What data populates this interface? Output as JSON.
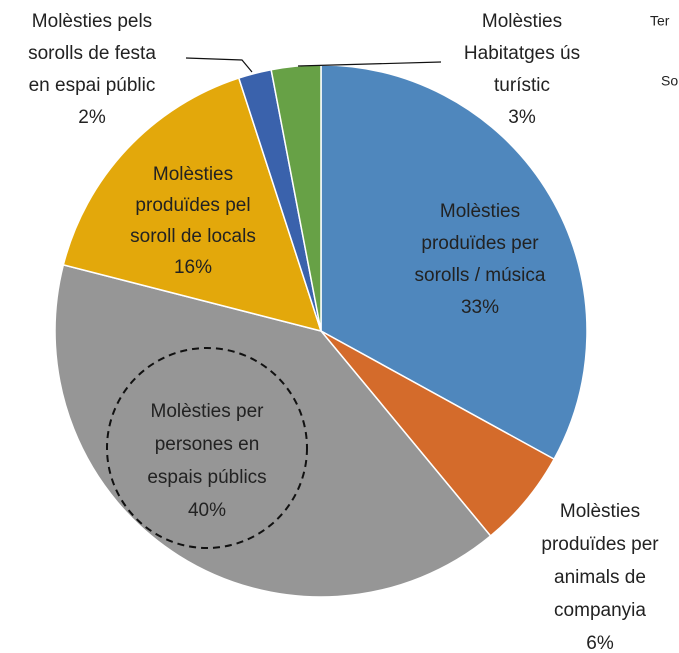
{
  "chart_data": {
    "type": "pie",
    "categories": [
      [
        "Molèsties",
        "produïdes per",
        "sorolls / música"
      ],
      [
        "Molèsties",
        "produïdes per",
        "animals de",
        "companyia"
      ],
      [
        "Molèsties per",
        "persones en",
        "espais públics"
      ],
      [
        "Molèsties",
        "produïdes pel",
        "soroll de locals"
      ],
      [
        "Molèsties pels",
        "sorolls de festa",
        "en espai públic"
      ],
      [
        "Molèsties",
        "Habitatges ús",
        "turístic"
      ]
    ],
    "values": [
      33,
      6,
      40,
      16,
      2,
      3
    ],
    "value_labels": [
      "33%",
      "6%",
      "40%",
      "16%",
      "2%",
      "3%"
    ],
    "colors": [
      "#4f87bd",
      "#d46b2b",
      "#969696",
      "#e3a80b",
      "#3a62ac",
      "#67a146"
    ],
    "annotations": [
      "Ter",
      "So"
    ]
  }
}
